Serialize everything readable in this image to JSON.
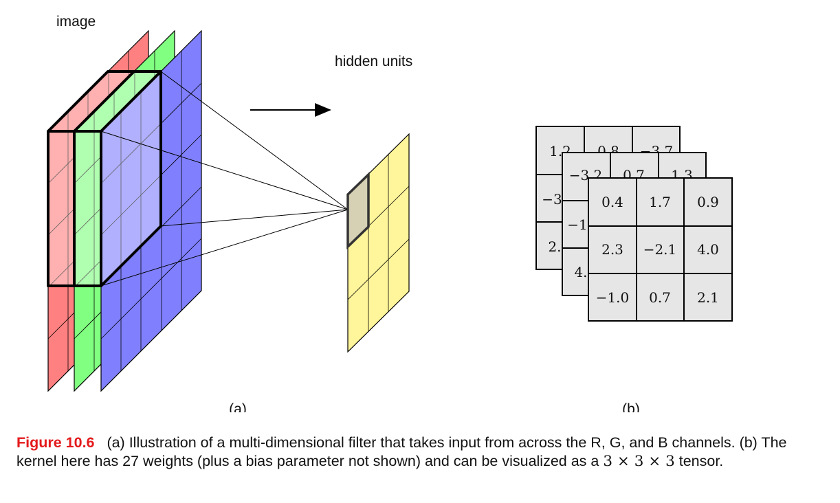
{
  "labels": {
    "image": "image",
    "hidden_units": "hidden units",
    "panel_a": "(a)",
    "panel_b": "(b)"
  },
  "kernel": {
    "back": [
      "1.2",
      "0.8",
      "−3.7",
      "−3",
      "2."
    ],
    "middle": [
      "−3.2",
      "0.7",
      "1.3",
      "−1",
      "4."
    ],
    "front": [
      [
        "0.4",
        "1.7",
        "0.9"
      ],
      [
        "2.3",
        "−2.1",
        "4.0"
      ],
      [
        "−1.0",
        "0.7",
        "2.1"
      ]
    ]
  },
  "caption": {
    "figure_label": "Figure 10.6",
    "text_a": "(a) Illustration of a multi-dimensional filter that takes input from across the R, G, and B channels. (b) The kernel here has 27 weights (plus a bias parameter not shown) and can be visualized as a",
    "math": "3 × 3 × 3",
    "text_end": "tensor."
  },
  "colors": {
    "red_channel": "#ff8080",
    "green_channel": "#80ff80",
    "blue_channel": "#8080ff",
    "hidden_units": "#fff59a",
    "kernel_cell": "#e6e6e6",
    "figure_label": "#e41a1c"
  }
}
